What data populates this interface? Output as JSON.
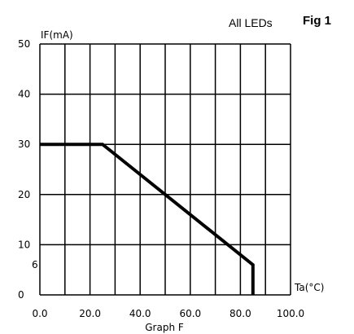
{
  "figure_label": "Fig 1",
  "chart_data": {
    "type": "line",
    "annotation": "All LEDs",
    "title": "",
    "caption": "Graph F",
    "xlabel": "Ta(°C)",
    "ylabel": "IF(mA)",
    "xlim": [
      0,
      100
    ],
    "ylim": [
      0,
      50
    ],
    "grid": true,
    "x_ticks": [
      0,
      10,
      20,
      30,
      40,
      50,
      60,
      70,
      80,
      90,
      100
    ],
    "x_tick_labels": [
      "0.0",
      "",
      "20.0",
      "",
      "40.0",
      "",
      "60.0",
      "",
      "80.0",
      "",
      "100.0"
    ],
    "y_ticks": [
      0,
      10,
      20,
      30,
      40,
      50
    ],
    "y_tick_labels": [
      "0",
      "10",
      "20",
      "30",
      "40",
      "50"
    ],
    "extra_y_labels": [
      {
        "value": 6,
        "text": "6"
      }
    ],
    "series": [
      {
        "points": [
          {
            "x": 0,
            "y": 30
          },
          {
            "x": 25,
            "y": 30
          },
          {
            "x": 85,
            "y": 6
          },
          {
            "x": 85,
            "y": 0
          }
        ]
      }
    ]
  }
}
